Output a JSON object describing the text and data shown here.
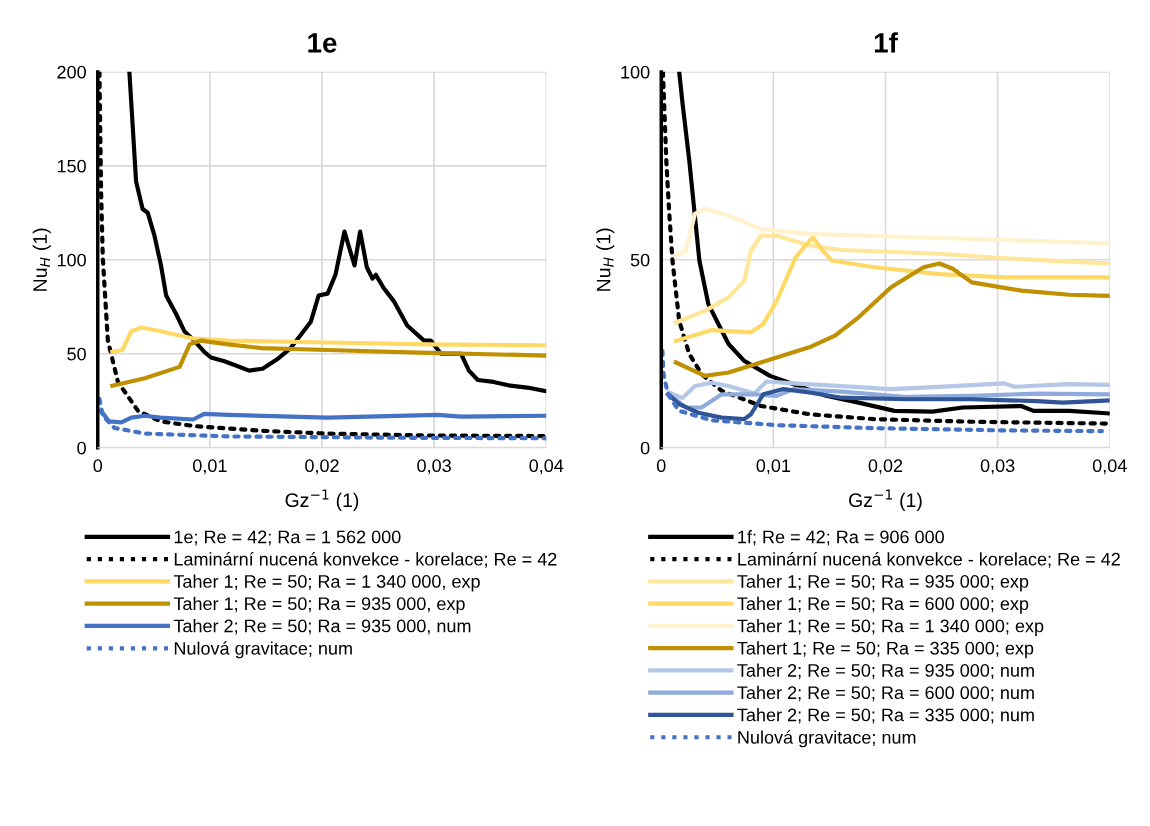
{
  "chart_data": [
    {
      "type": "line",
      "title": "1e",
      "xlabel": "Gz$^{−1}$ (1)",
      "ylabel": "Nu$_{H}$ (1)",
      "xlim": [
        0,
        0.04
      ],
      "ylim": [
        0,
        200
      ],
      "xticks": [
        0,
        {
          "value": 0.01,
          "label": "0,01"
        },
        {
          "value": 0.02,
          "label": "0,02"
        },
        {
          "value": 0.03,
          "label": "0,03"
        },
        {
          "value": 0.04,
          "label": "0,04"
        }
      ],
      "yticks": [
        0,
        50,
        100,
        150,
        200
      ],
      "grid": true,
      "legend": "bottom",
      "series": [
        {
          "name": "1e; Re = 42; Ra = 1 562 000",
          "color": "#000000",
          "line_style": "solid",
          "x": [
            0.00282,
            0.00342,
            0.004,
            0.00446,
            0.00505,
            0.00564,
            0.0061,
            0.007,
            0.00772,
            0.0086,
            0.0095,
            0.0101,
            0.0113,
            0.0122,
            0.0135,
            0.0147,
            0.016,
            0.0172,
            0.0181,
            0.019,
            0.0197,
            0.0205,
            0.0212,
            0.022,
            0.0229,
            0.0234,
            0.024,
            0.0245,
            0.0248,
            0.0255,
            0.0264,
            0.0276,
            0.0291,
            0.0297,
            0.0306,
            0.0324,
            0.0331,
            0.0339,
            0.0353,
            0.0368,
            0.0383,
            0.04
          ],
          "values": [
            200,
            141.6,
            127,
            125,
            113,
            97,
            81,
            71,
            62,
            57,
            51,
            48,
            46,
            44,
            41,
            42,
            47,
            53,
            60,
            67,
            81,
            82,
            92,
            115,
            97,
            115,
            96,
            90,
            92,
            85,
            78,
            65,
            57,
            57,
            50,
            50,
            41,
            36,
            35,
            33,
            32,
            30
          ]
        },
        {
          "name": "Laminární nucená konvekce - korelace; Re = 42",
          "color": "#000000",
          "line_style": "dotted",
          "x": [
            0.00015,
            0.0003,
            0.00045,
            0.0009,
            0.0018,
            0.0036,
            0.0056,
            0.0086,
            0.0146,
            0.0205,
            0.0294,
            0.04
          ],
          "values": [
            200,
            136,
            101,
            57,
            35,
            19.5,
            14,
            11.5,
            9,
            7.5,
            6.5,
            6.2
          ]
        },
        {
          "name": "Taher 1; Re = 50; Ra = 1 340 000, exp",
          "color": "#ffd966",
          "line_style": "solid",
          "x": [
            0.0013,
            0.0022,
            0.003,
            0.0039,
            0.0056,
            0.0086,
            0.0116,
            0.0205,
            0.0294,
            0.04
          ],
          "values": [
            51,
            52,
            62,
            64,
            62,
            58,
            57,
            56,
            55,
            54.5
          ]
        },
        {
          "name": "Taher 1; Re = 50; Ra = 935 000, exp",
          "color": "#bf9000",
          "line_style": "solid",
          "x": [
            0.0013,
            0.0042,
            0.0073,
            0.0082,
            0.0092,
            0.0116,
            0.0146,
            0.0205,
            0.0294,
            0.04
          ],
          "values": [
            33,
            37,
            43,
            55,
            57,
            55,
            53,
            52,
            50.5,
            49
          ]
        },
        {
          "name": "Taher 2; Re = 50; Ra = 935 000, num",
          "color": "#4472c4",
          "line_style": "solid",
          "x": [
            0.0003,
            0.001,
            0.0021,
            0.003,
            0.0042,
            0.0056,
            0.0085,
            0.0095,
            0.0116,
            0.0205,
            0.0303,
            0.0324,
            0.04
          ],
          "values": [
            19.5,
            14,
            13.5,
            16,
            17,
            16,
            15,
            18,
            17.5,
            16,
            17.5,
            16.5,
            17
          ]
        },
        {
          "name": "Nulová gravitace; num",
          "color": "#4472c4",
          "line_style": "dotted",
          "x": [
            0.00015,
            0.00045,
            0.0015,
            0.0042,
            0.0116,
            0.0264,
            0.04
          ],
          "values": [
            26,
            17,
            10.5,
            7.5,
            6,
            5.3,
            5
          ]
        }
      ]
    },
    {
      "type": "line",
      "title": "1f",
      "xlabel": "Gz$^{−1}$ (1)",
      "ylabel": "Nu$_{H}$ (1)",
      "xlim": [
        0,
        0.04
      ],
      "ylim": [
        0,
        100
      ],
      "xticks": [
        0,
        {
          "value": 0.01,
          "label": "0,01"
        },
        {
          "value": 0.02,
          "label": "0,02"
        },
        {
          "value": 0.03,
          "label": "0,03"
        },
        {
          "value": 0.04,
          "label": "0,04"
        }
      ],
      "yticks": [
        0,
        50,
        100
      ],
      "grid": true,
      "legend": "bottom",
      "series": [
        {
          "name": "1f; Re = 42; Ra = 906 000",
          "color": "#000000",
          "line_style": "solid",
          "x": [
            0.0016,
            0.0019,
            0.0025,
            0.0034,
            0.0042,
            0.0051,
            0.006,
            0.0074,
            0.0097,
            0.0118,
            0.0147,
            0.0176,
            0.0208,
            0.0242,
            0.0269,
            0.0321,
            0.0332,
            0.0364,
            0.04
          ],
          "values": [
            100,
            91.6,
            76.4,
            49.8,
            38.2,
            32.9,
            27.6,
            23.1,
            19.1,
            16.9,
            13.8,
            12,
            9.8,
            9.6,
            10.7,
            11.1,
            9.8,
            9.8,
            9.1
          ]
        },
        {
          "name": "Laminární nucená konvekce - korelace; Re = 42",
          "color": "#000000",
          "line_style": "dotted",
          "x": [
            0.00015,
            0.00045,
            0.0007,
            0.001,
            0.0016,
            0.0025,
            0.0036,
            0.0054,
            0.0089,
            0.0132,
            0.019,
            0.0277,
            0.04
          ],
          "values": [
            100,
            76.4,
            63,
            49.8,
            33.8,
            24.9,
            19.6,
            15.1,
            11.1,
            8.9,
            7.6,
            6.9,
            6.4
          ]
        },
        {
          "name": "Taher 1; Re = 50; Ra = 935 000; exp",
          "color": "#ffe699",
          "line_style": "solid",
          "x": [
            0.0013,
            0.0039,
            0.006,
            0.0074,
            0.008,
            0.0089,
            0.0103,
            0.0132,
            0.0161,
            0.0248,
            0.0306,
            0.04
          ],
          "values": [
            33.3,
            36.4,
            40,
            44.4,
            52.4,
            56.4,
            56.4,
            53.8,
            52.6,
            51.6,
            50.4,
            49
          ]
        },
        {
          "name": "Taher 1; Re = 50; Ra = 600 000; exp",
          "color": "#ffd966",
          "line_style": "solid",
          "x": [
            0.0013,
            0.0045,
            0.008,
            0.0091,
            0.0103,
            0.012,
            0.0135,
            0.0144,
            0.0152,
            0.019,
            0.0248,
            0.0306,
            0.04
          ],
          "values": [
            28.4,
            31.3,
            30.7,
            32.9,
            39.1,
            50.7,
            56,
            52.4,
            49.8,
            48,
            46.2,
            45.3,
            45.3
          ]
        },
        {
          "name": "Taher 1; Re = 50; Ra = 1 340 000; exp",
          "color": "#fff2cc",
          "line_style": "solid",
          "x": [
            0.0013,
            0.0022,
            0.003,
            0.0039,
            0.006,
            0.0089,
            0.0132,
            0.0248,
            0.04
          ],
          "values": [
            51.1,
            52.4,
            62.2,
            63.6,
            61.8,
            58.2,
            56.9,
            55.8,
            54.4
          ]
        },
        {
          "name": "Tahert 1; Re = 50; Ra = 335 000; exp",
          "color": "#bf9000",
          "line_style": "solid",
          "x": [
            0.0013,
            0.0039,
            0.006,
            0.0103,
            0.0132,
            0.0155,
            0.0176,
            0.0205,
            0.0234,
            0.0248,
            0.026,
            0.0277,
            0.0321,
            0.0364,
            0.04
          ],
          "values": [
            22.7,
            19.1,
            20,
            24,
            26.7,
            29.8,
            34.7,
            42.7,
            48,
            49,
            47.6,
            44,
            41.8,
            40.7,
            40.4
          ]
        },
        {
          "name": "Taher 2; Re = 50; Ra = 935 000; num",
          "color": "#b4c7e7",
          "line_style": "solid",
          "x": [
            0.0007,
            0.0019,
            0.003,
            0.0045,
            0.006,
            0.0083,
            0.0094,
            0.0118,
            0.0161,
            0.0205,
            0.0248,
            0.0306,
            0.0315,
            0.0364,
            0.04
          ],
          "values": [
            14.7,
            13.2,
            16.4,
            17.3,
            16.4,
            14.4,
            17.6,
            17.1,
            16.4,
            15.6,
            16.2,
            17.1,
            16.2,
            16.9,
            16.7
          ]
        },
        {
          "name": "Taher 2; Re = 50; Ra = 600 000; num",
          "color": "#8faadc",
          "line_style": "solid",
          "x": [
            0.0007,
            0.0022,
            0.0036,
            0.0054,
            0.0083,
            0.0103,
            0.0118,
            0.0161,
            0.0219,
            0.0277,
            0.0335,
            0.04
          ],
          "values": [
            14.2,
            10.7,
            10.7,
            14.2,
            14.2,
            13.8,
            15.6,
            14.9,
            13.5,
            13.8,
            14.4,
            14.2
          ]
        },
        {
          "name": "Taher 2; Re = 50; Ra = 335 000; num",
          "color": "#2f5597",
          "line_style": "solid",
          "x": [
            0.0006,
            0.0016,
            0.0033,
            0.0054,
            0.0074,
            0.008,
            0.0091,
            0.0109,
            0.0132,
            0.0161,
            0.0219,
            0.0277,
            0.0335,
            0.0358,
            0.04
          ],
          "values": [
            14.2,
            11.6,
            9.3,
            8,
            7.6,
            8.9,
            14.2,
            15.6,
            14.7,
            13.3,
            12.9,
            12.9,
            12.4,
            12,
            12.6
          ]
        },
        {
          "name": "Nulová gravitace; num",
          "color": "#4472c4",
          "line_style": "dotted",
          "x": [
            0.0001,
            0.0002,
            0.0006,
            0.0016,
            0.0045,
            0.0103,
            0.019,
            0.0306,
            0.0393
          ],
          "values": [
            25.8,
            19.6,
            14.2,
            9.8,
            7.3,
            6,
            5.2,
            4.6,
            4.4
          ]
        }
      ]
    }
  ]
}
